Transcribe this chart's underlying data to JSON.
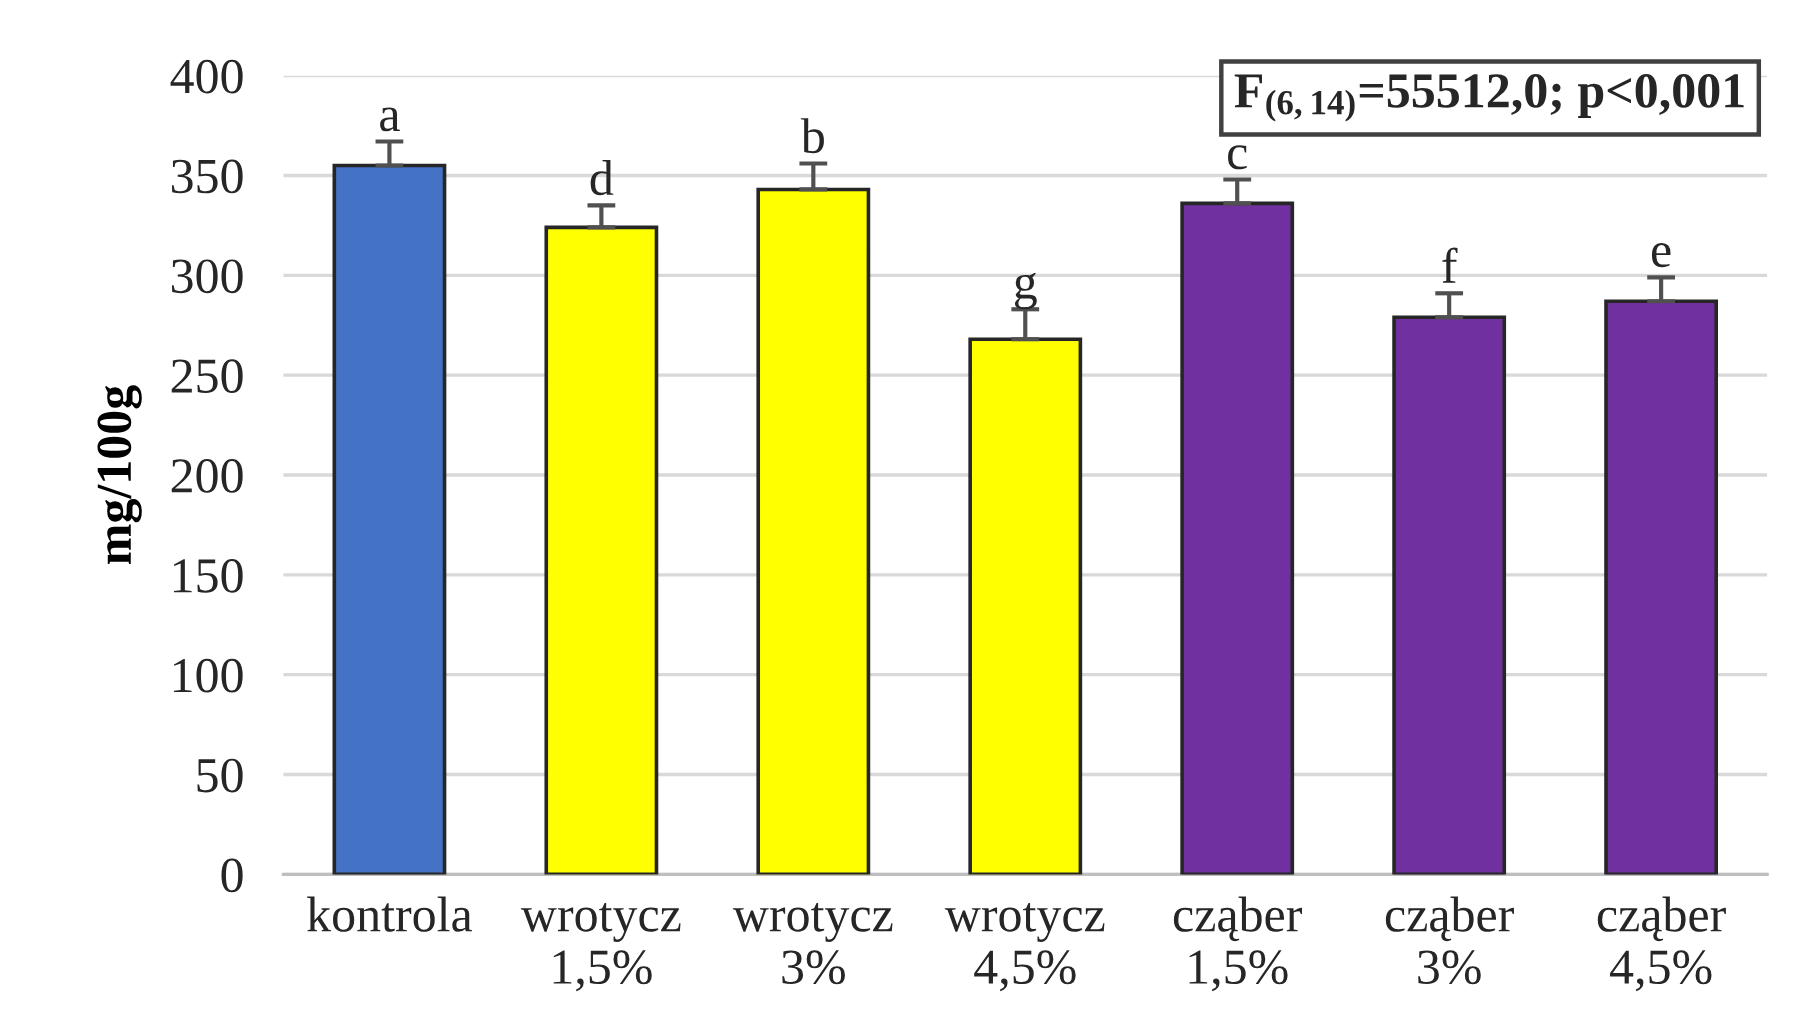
{
  "chart_data": {
    "type": "bar",
    "ylabel": "mg/100g",
    "categories": [
      "kontrola",
      "wrotycz\n1,5%",
      "wrotycz\n3%",
      "wrotycz\n4,5%",
      "cząber\n1,5%",
      "cząber\n3%",
      "cząber\n4,5%"
    ],
    "values": [
      355,
      324,
      343,
      268,
      336,
      279,
      287
    ],
    "colors": [
      "#4472c4",
      "#ffff00",
      "#ffff00",
      "#ffff00",
      "#7030a0",
      "#7030a0",
      "#7030a0"
    ],
    "errors": [
      [
        355,
        367
      ],
      [
        324,
        335
      ],
      [
        343,
        356
      ],
      [
        268,
        283
      ],
      [
        336,
        348
      ],
      [
        279,
        291
      ],
      [
        287,
        299
      ]
    ],
    "ylim": [
      0,
      400
    ],
    "yticks": [
      0,
      50,
      100,
      150,
      200,
      250,
      300,
      350,
      400
    ],
    "grid": "y",
    "annotations": [
      {
        "text": "a",
        "x": "kontrola",
        "y": 367
      },
      {
        "text": "d",
        "x": "wrotycz\n1,5%",
        "y": 335
      },
      {
        "text": "b",
        "x": "wrotycz\n3%",
        "y": 356
      },
      {
        "text": "g",
        "x": "wrotycz\n4,5%",
        "y": 283
      },
      {
        "text": "c",
        "x": "cząber\n1,5%",
        "y": 348
      },
      {
        "text": "f",
        "x": "cząber\n3%",
        "y": 291
      },
      {
        "text": "e",
        "x": "cząber\n4,5%",
        "y": 299
      },
      "F$_{(6,14)}$=55512,0; p<0,001"
    ]
  }
}
